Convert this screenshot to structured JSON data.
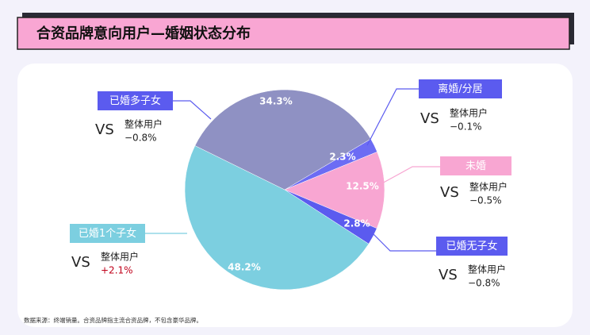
{
  "chart_data": {
    "type": "pie",
    "title": "合资品牌意向用户—婚姻状态分布",
    "categories": [
      "离婚/分居",
      "未婚",
      "已婚无子女",
      "已婚1个子女",
      "已婚多子女"
    ],
    "values": [
      2.3,
      12.5,
      2.8,
      48.2,
      34.3
    ],
    "value_labels": [
      "2.3%",
      "12.5%",
      "2.8%",
      "48.2%",
      "34.3%"
    ],
    "colors": [
      "#6c6cf4",
      "#f8a6d2",
      "#5b5bef",
      "#7ccfe0",
      "#8f91c3"
    ],
    "label_colors": [
      "#5b5bef",
      "#f8a6d2",
      "#5b5bef",
      "#7ccfe0",
      "#5b5bef"
    ],
    "comparisons": [
      {
        "vs": "VS",
        "label": "整体用户",
        "diff": "−0.1%",
        "color": "#222222"
      },
      {
        "vs": "VS",
        "label": "整体用户",
        "diff": "−0.5%",
        "color": "#222222"
      },
      {
        "vs": "VS",
        "label": "整体用户",
        "diff": "−0.8%",
        "color": "#222222"
      },
      {
        "vs": "VS",
        "label": "整体用户",
        "diff": "+2.1%",
        "color": "#c0001a"
      },
      {
        "vs": "VS",
        "label": "整体用户",
        "diff": "−0.8%",
        "color": "#222222"
      }
    ],
    "note": "数据来源：终端销量。合资品牌指主流合资品牌，不包含豪华品牌。"
  }
}
